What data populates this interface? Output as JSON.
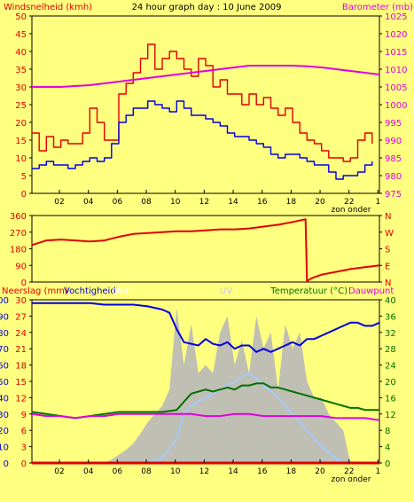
{
  "colors": {
    "background": "#ffff80",
    "wind_max": "#e00000",
    "wind_avg": "#0000e0",
    "barometer": "#e000e0",
    "wind_dir": "#e00000",
    "humidity": "#0000e0",
    "temperature": "#007000",
    "dewpoint": "#e000e0",
    "solar": "#b8b8b8",
    "uv": "#a8c8ff",
    "rain": "#e00000",
    "axis_right_green": "#007000"
  },
  "chart_data": [
    {
      "type": "line",
      "title": "24 hour graph day : 10 June 2009",
      "ylabel": "Windsnelheid (kmh)",
      "y2label": "Barometer (mb)",
      "ylim": [
        0,
        50
      ],
      "y2lim": [
        975,
        1025
      ],
      "yticks": [
        "0",
        "5",
        "10",
        "15",
        "20",
        "25",
        "30",
        "35",
        "40",
        "45",
        "50"
      ],
      "y2ticks": [
        "975",
        "980",
        "985",
        "990",
        "995",
        "1000",
        "1005",
        "1010",
        "1015",
        "1020",
        "1025"
      ],
      "xticks": [
        "02",
        "04",
        "06",
        "08",
        "10",
        "12",
        "14",
        "16",
        "18",
        "20",
        "22",
        "1"
      ],
      "x_extra_label": "zon onder",
      "xlim": [
        0,
        24
      ],
      "series": [
        {
          "name": "Windstoten",
          "color_key": "wind_max",
          "x": [
            0,
            0.5,
            1,
            1.5,
            2,
            2.5,
            3,
            3.5,
            4,
            4.5,
            5,
            5.5,
            6,
            6.5,
            7,
            7.5,
            8,
            8.5,
            9,
            9.5,
            10,
            10.5,
            11,
            11.5,
            12,
            12.5,
            13,
            13.5,
            14,
            14.5,
            15,
            15.5,
            16,
            16.5,
            17,
            17.5,
            18,
            18.5,
            19,
            19.5,
            20,
            20.5,
            21,
            21.5,
            22,
            22.5,
            23,
            23.5
          ],
          "values": [
            17,
            12,
            16,
            13,
            15,
            14,
            14,
            17,
            24,
            20,
            15,
            15,
            28,
            31,
            34,
            38,
            42,
            35,
            38,
            40,
            38,
            35,
            33,
            38,
            36,
            30,
            32,
            28,
            28,
            25,
            28,
            25,
            27,
            24,
            22,
            24,
            20,
            17,
            15,
            14,
            12,
            10,
            10,
            9,
            10,
            15,
            17,
            14
          ]
        },
        {
          "name": "Windsnelheid",
          "color_key": "wind_avg",
          "x": [
            0,
            0.5,
            1,
            1.5,
            2,
            2.5,
            3,
            3.5,
            4,
            4.5,
            5,
            5.5,
            6,
            6.5,
            7,
            7.5,
            8,
            8.5,
            9,
            9.5,
            10,
            10.5,
            11,
            11.5,
            12,
            12.5,
            13,
            13.5,
            14,
            14.5,
            15,
            15.5,
            16,
            16.5,
            17,
            17.5,
            18,
            18.5,
            19,
            19.5,
            20,
            20.5,
            21,
            21.5,
            22,
            22.5,
            23,
            23.5
          ],
          "values": [
            7,
            8,
            9,
            8,
            8,
            7,
            8,
            9,
            10,
            9,
            10,
            14,
            20,
            22,
            24,
            24,
            26,
            25,
            24,
            23,
            26,
            24,
            22,
            22,
            21,
            20,
            19,
            17,
            16,
            16,
            15,
            14,
            13,
            11,
            10,
            11,
            11,
            10,
            9,
            8,
            8,
            6,
            4,
            5,
            5,
            6,
            8,
            9
          ]
        },
        {
          "name": "Barometer",
          "color_key": "barometer",
          "axis": "right",
          "x": [
            0,
            2,
            4,
            5,
            6,
            7,
            8,
            9,
            10,
            11,
            12,
            13,
            14,
            15,
            16,
            17,
            18,
            19,
            20,
            21,
            22,
            23,
            24
          ],
          "values": [
            1005,
            1005,
            1005.5,
            1006,
            1006.5,
            1007,
            1007.5,
            1008,
            1008.5,
            1009,
            1009.5,
            1010,
            1010.5,
            1011,
            1011,
            1011,
            1011,
            1010.8,
            1010.5,
            1010,
            1009.5,
            1009,
            1008.5
          ]
        }
      ]
    },
    {
      "type": "line",
      "ylabel": "",
      "ylim": [
        0,
        360
      ],
      "yticks": [
        "0",
        "90",
        "180",
        "270",
        "360"
      ],
      "y2ticks": [
        "N",
        "E",
        "S",
        "W",
        "N"
      ],
      "xlim": [
        0,
        24
      ],
      "series": [
        {
          "name": "Windrichting",
          "color_key": "wind_dir",
          "x": [
            0,
            1,
            2,
            3,
            4,
            5,
            6,
            7,
            8,
            9,
            10,
            11,
            12,
            13,
            14,
            15,
            16,
            17,
            18,
            18.9,
            19,
            19.3,
            20,
            21,
            22,
            23,
            24
          ],
          "values": [
            200,
            225,
            230,
            225,
            220,
            225,
            245,
            260,
            265,
            270,
            275,
            275,
            280,
            285,
            285,
            290,
            300,
            310,
            325,
            340,
            5,
            20,
            40,
            55,
            70,
            80,
            90
          ]
        }
      ]
    },
    {
      "type": "line",
      "ylabel": "Neerslag (mm)",
      "y2label": "Temperatuur (°C)",
      "labels": [
        "Vochtigheid",
        "olar",
        "UV",
        "Dauwpunt"
      ],
      "ylim": [
        0,
        30
      ],
      "yticks": [
        "0",
        "3",
        "6",
        "9",
        "12",
        "15",
        "18",
        "21",
        "24",
        "27",
        "30"
      ],
      "y1bticks": [
        "0",
        "10",
        "20",
        "30",
        "40",
        "50",
        "60",
        "70",
        "80",
        "90",
        "100"
      ],
      "y2lim": [
        0,
        40
      ],
      "y2ticks": [
        "0",
        "4",
        "8",
        "12",
        "16",
        "20",
        "24",
        "28",
        "32",
        "36",
        "40"
      ],
      "xticks": [
        "02",
        "04",
        "06",
        "08",
        "10",
        "12",
        "14",
        "16",
        "18",
        "20",
        "22",
        "1"
      ],
      "x_extra_label": "zon onder",
      "xlim": [
        0,
        24
      ],
      "series": [
        {
          "name": "Vochtigheid",
          "color_key": "humidity",
          "axis": "mid",
          "x": [
            0,
            1,
            2,
            3,
            4,
            5,
            6,
            7,
            8,
            9,
            9.5,
            10,
            10.5,
            11,
            11.5,
            12,
            12.5,
            13,
            13.5,
            14,
            14.5,
            15,
            15.5,
            16,
            16.5,
            17,
            17.5,
            18,
            18.5,
            19,
            19.5,
            20,
            20.5,
            21,
            21.5,
            22,
            22.5,
            23,
            23.5,
            24
          ],
          "values": [
            98,
            98,
            98,
            98,
            98,
            97,
            97,
            97,
            96,
            94,
            92,
            82,
            74,
            73,
            72,
            76,
            73,
            72,
            74,
            70,
            72,
            72,
            68,
            70,
            68,
            70,
            72,
            74,
            72,
            76,
            76,
            78,
            80,
            82,
            84,
            86,
            86,
            84,
            84,
            86
          ]
        },
        {
          "name": "Temperatuur",
          "color_key": "temperature",
          "axis": "right",
          "x": [
            0,
            1,
            2,
            3,
            4,
            5,
            6,
            7,
            8,
            9,
            10,
            10.5,
            11,
            11.5,
            12,
            12.5,
            13,
            13.5,
            14,
            14.5,
            15,
            15.5,
            16,
            16.5,
            17,
            17.5,
            18,
            18.5,
            19,
            19.5,
            20,
            20.5,
            21,
            21.5,
            22,
            22.5,
            23,
            23.5,
            24
          ],
          "values": [
            12.5,
            12,
            11.5,
            11,
            11.5,
            12,
            12.5,
            12.5,
            12.5,
            12.5,
            13,
            15,
            17,
            17.5,
            18,
            17.5,
            18,
            18.5,
            18,
            19,
            19,
            19.5,
            19.5,
            18.5,
            18.5,
            18,
            17.5,
            17,
            16.5,
            16,
            15.5,
            15,
            14.5,
            14,
            13.5,
            13.5,
            13,
            13,
            13
          ]
        },
        {
          "name": "Dauwpunt",
          "color_key": "dewpoint",
          "axis": "right",
          "x": [
            0,
            1,
            2,
            3,
            4,
            5,
            6,
            7,
            8,
            9,
            10,
            11,
            12,
            13,
            14,
            15,
            16,
            17,
            18,
            19,
            20,
            21,
            22,
            23,
            24
          ],
          "values": [
            12,
            11.5,
            11.5,
            11,
            11.5,
            11.5,
            12,
            12,
            12,
            12,
            12,
            12,
            11.5,
            11.5,
            12,
            12,
            11.5,
            11.5,
            11.5,
            11.5,
            11.5,
            11,
            11,
            11,
            10.5
          ]
        },
        {
          "name": "Zonnestraling",
          "color_key": "solar",
          "style": "area",
          "axis": "mid",
          "x": [
            5,
            5.5,
            6,
            6.5,
            7,
            7.5,
            8,
            8.5,
            9,
            9.5,
            10,
            10.5,
            11,
            11.5,
            12,
            12.5,
            13,
            13.5,
            14,
            14.5,
            15,
            15.5,
            16,
            16.5,
            17,
            17.5,
            18,
            18.5,
            19,
            19.5,
            20,
            20.5,
            21,
            21.5,
            22
          ],
          "values": [
            0,
            2,
            5,
            8,
            12,
            18,
            25,
            30,
            35,
            45,
            95,
            60,
            85,
            55,
            60,
            55,
            80,
            90,
            60,
            75,
            55,
            90,
            70,
            80,
            45,
            85,
            70,
            80,
            50,
            40,
            40,
            30,
            25,
            20,
            0
          ]
        },
        {
          "name": "UV",
          "color_key": "uv",
          "axis": "mid",
          "x": [
            8,
            9,
            10,
            10.5,
            11,
            12,
            13,
            14,
            15,
            16,
            17,
            18,
            19,
            20,
            21,
            21.5
          ],
          "values": [
            0,
            3,
            15,
            30,
            35,
            40,
            45,
            50,
            55,
            48,
            40,
            30,
            20,
            10,
            3,
            0
          ]
        },
        {
          "name": "Neerslag",
          "color_key": "rain",
          "x": [
            0,
            24
          ],
          "values": [
            0,
            0
          ]
        }
      ]
    }
  ]
}
